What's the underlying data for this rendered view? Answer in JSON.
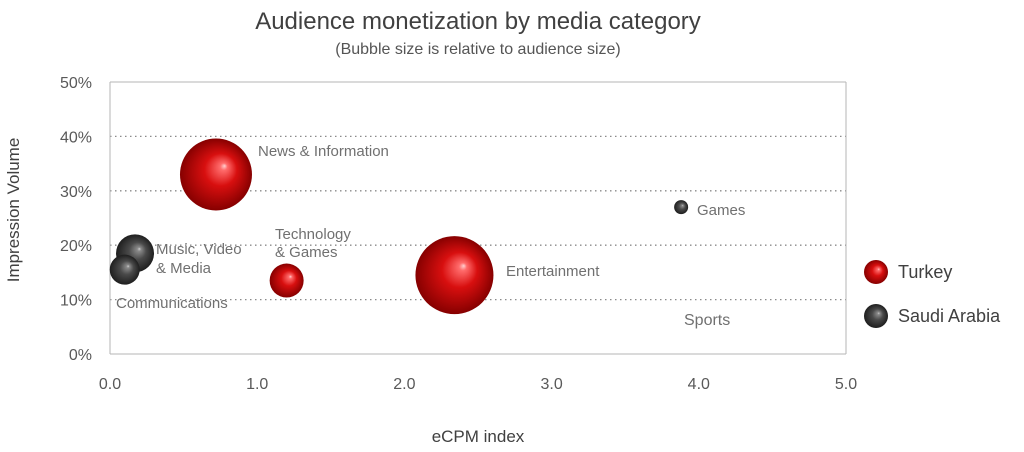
{
  "chart_data": {
    "type": "scatter",
    "title": "Audience monetization by media category",
    "subtitle": "(Bubble size is relative to audience size)",
    "xlabel": "eCPM index",
    "ylabel": "Impression Volume",
    "xlim": [
      0,
      5
    ],
    "ylim": [
      0,
      50
    ],
    "x_ticks": [
      "0.0",
      "1.0",
      "2.0",
      "3.0",
      "4.0",
      "5.0"
    ],
    "y_ticks": [
      "0%",
      "10%",
      "20%",
      "30%",
      "40%",
      "50%"
    ],
    "grid": "horizontal dotted",
    "legend_position": "right",
    "series": [
      {
        "name": "Turkey",
        "color": "#c00000",
        "points": [
          {
            "label": "News & Information",
            "x": 0.72,
            "y": 33,
            "size": 36
          },
          {
            "label": "Technology & Games",
            "x": 1.2,
            "y": 13.5,
            "size": 17
          },
          {
            "label": "Entertainment",
            "x": 2.34,
            "y": 14.5,
            "size": 39
          }
        ]
      },
      {
        "name": "Saudi Arabia",
        "color": "#404040",
        "points": [
          {
            "label": "Music, Video & Media",
            "x": 0.17,
            "y": 18.5,
            "size": 19
          },
          {
            "label": "Communications",
            "x": 0.1,
            "y": 15.5,
            "size": 15
          },
          {
            "label": "Games",
            "x": 3.88,
            "y": 27,
            "size": 7
          }
        ]
      }
    ],
    "annotations": [
      {
        "text": "News & Information"
      },
      {
        "text": "Technology"
      },
      {
        "text": "& Games"
      },
      {
        "text": "Music, Video"
      },
      {
        "text": "& Media"
      },
      {
        "text": "Communications"
      },
      {
        "text": "Entertainment"
      },
      {
        "text": "Games"
      },
      {
        "text": "Sports"
      }
    ]
  }
}
